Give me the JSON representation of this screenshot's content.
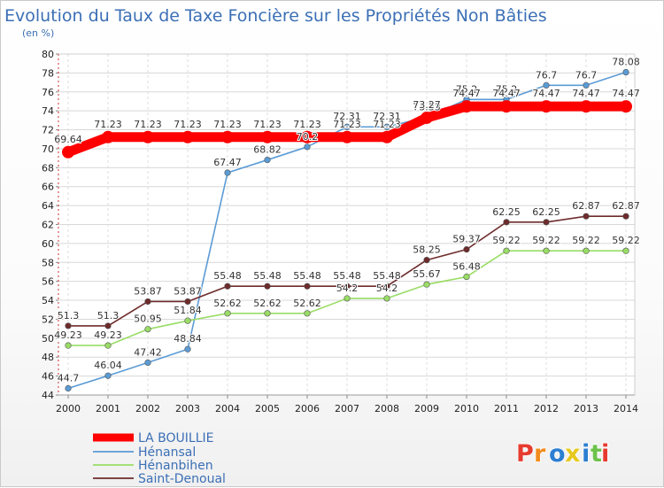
{
  "chart_data": {
    "type": "line",
    "title": "Evolution du Taux de Taxe Foncière sur les Propriétés Non Bâties",
    "subtitle": "(en %)",
    "xlabel": "",
    "ylabel": "",
    "ylim": [
      44,
      80
    ],
    "y_ticks": [
      "44",
      "46",
      "48",
      "50",
      "52",
      "54",
      "56",
      "58",
      "60",
      "62",
      "64",
      "66",
      "68",
      "70",
      "72",
      "74",
      "76",
      "78",
      "80"
    ],
    "grid": true,
    "legend_position": "bottom-left",
    "x": [
      "2000",
      "2001",
      "2002",
      "2003",
      "2004",
      "2005",
      "2006",
      "2007",
      "2008",
      "2009",
      "2010",
      "2011",
      "2012",
      "2013",
      "2014"
    ],
    "series": [
      {
        "name": "LA BOUILLIE",
        "color": "#ff0000",
        "values": [
          69.64,
          71.23,
          71.23,
          71.23,
          71.23,
          71.23,
          71.23,
          71.23,
          71.23,
          73.27,
          74.47,
          74.47,
          74.47,
          74.47,
          74.47
        ],
        "labels": [
          "69.64",
          "71.23",
          "71.23",
          "71.23",
          "71.23",
          "71.23",
          "71.23",
          "71.23",
          "71.23",
          "73.27",
          "74.47",
          "74.47",
          "74.47",
          "74.47",
          "74.47"
        ]
      },
      {
        "name": "Hénansal",
        "color": "#5b9bd5",
        "values": [
          44.7,
          46.04,
          47.42,
          48.84,
          67.47,
          68.82,
          70.2,
          72.31,
          72.31,
          73.33,
          75.2,
          75.2,
          76.7,
          76.7,
          78.08
        ],
        "labels": [
          "44.7",
          "46.04",
          "47.42",
          "48.84",
          "67.47",
          "68.82",
          "70.2",
          "72.31",
          "72.31",
          "73.33",
          "75.2",
          "75.2",
          "76.7",
          "76.7",
          "78.08"
        ]
      },
      {
        "name": "Hénanbihen",
        "color": "#99dd66",
        "values": [
          49.23,
          49.23,
          50.95,
          51.84,
          52.62,
          52.62,
          52.62,
          54.2,
          54.2,
          55.67,
          56.48,
          59.22,
          59.22,
          59.22,
          59.22
        ],
        "labels": [
          "49.23",
          "49.23",
          "50.95",
          "51.84",
          "52.62",
          "52.62",
          "52.62",
          "54.2",
          "54.2",
          "55.67",
          "56.48",
          "59.22",
          "59.22",
          "59.22",
          "59.22"
        ]
      },
      {
        "name": "Saint-Denoual",
        "color": "#6e2b2b",
        "values": [
          51.3,
          51.3,
          53.87,
          53.87,
          55.48,
          55.48,
          55.48,
          55.48,
          55.48,
          58.25,
          59.37,
          62.25,
          62.25,
          62.87,
          62.87
        ],
        "labels": [
          "51.3",
          "51.3",
          "53.87",
          "53.87",
          "55.48",
          "55.48",
          "55.48",
          "55.48",
          "55.48",
          "58.25",
          "59.37",
          "62.25",
          "62.25",
          "62.87",
          "62.87"
        ]
      }
    ]
  },
  "logo": {
    "text": "Proxiti",
    "letters": [
      "P",
      "r",
      "o",
      "x",
      "i",
      "t",
      "i"
    ],
    "colors": [
      "#e63c2f",
      "#f28c1e",
      "#2c7fd1",
      "#e6c81e",
      "#2c7fd1",
      "#6cc24a",
      "#e63c2f"
    ]
  }
}
